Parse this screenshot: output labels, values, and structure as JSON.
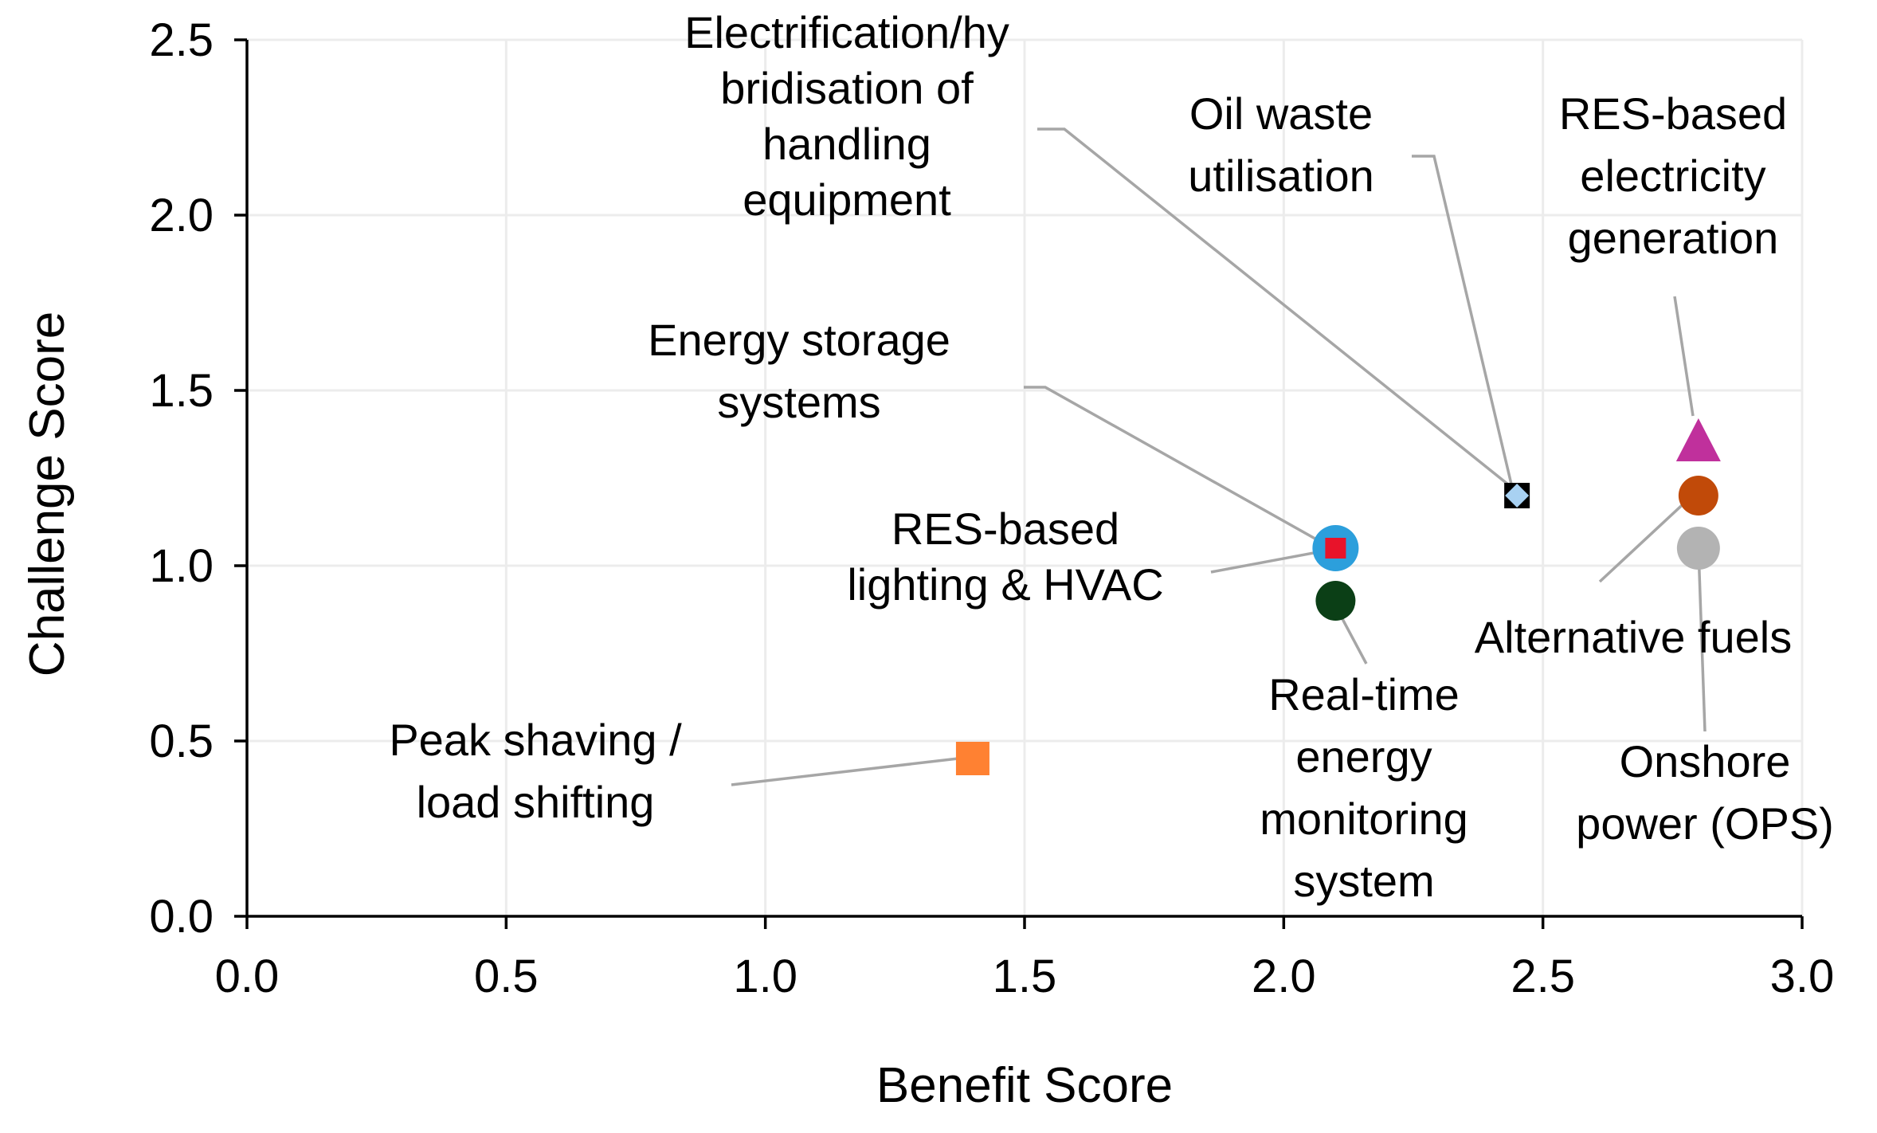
{
  "chart_data": {
    "type": "scatter",
    "title": "",
    "xlabel": "Benefit Score",
    "ylabel": "Challenge Score",
    "xlim": [
      0,
      3.0
    ],
    "ylim": [
      0,
      2.5
    ],
    "xticks": [
      "0.0",
      "0.5",
      "1.0",
      "1.5",
      "2.0",
      "2.5",
      "3.0"
    ],
    "yticks": [
      "0.0",
      "0.5",
      "1.0",
      "1.5",
      "2.0",
      "2.5"
    ],
    "grid": true,
    "legend": "none",
    "points": [
      {
        "id": "peak-shaving",
        "label": [
          "Peak shaving /",
          "load shifting"
        ],
        "x": 1.4,
        "y": 0.45,
        "marker": "square",
        "color": "#ff8132"
      },
      {
        "id": "energy-storage",
        "label": [
          "Energy storage",
          "systems"
        ],
        "x": 2.1,
        "y": 1.05,
        "marker": "circle",
        "color": "#2c9fdc"
      },
      {
        "id": "res-lighting-hvac",
        "label": [
          "RES-based",
          "lighting & HVAC"
        ],
        "x": 2.1,
        "y": 1.05,
        "marker": "square",
        "color": "#e8132a"
      },
      {
        "id": "real-time-monitoring",
        "label": [
          "Real-time",
          "energy",
          "monitoring",
          "system"
        ],
        "x": 2.1,
        "y": 0.9,
        "marker": "circle",
        "color": "#0b3f16"
      },
      {
        "id": "oil-waste",
        "label": [
          "Oil waste",
          "utilisation"
        ],
        "x": 2.45,
        "y": 1.2,
        "marker": "square",
        "color": "#000000"
      },
      {
        "id": "electrification",
        "label": [
          "Electrification/hy",
          "bridisation of",
          "handling",
          "equipment"
        ],
        "x": 2.45,
        "y": 1.2,
        "marker": "diamond",
        "color": "#a8d1f2"
      },
      {
        "id": "res-electricity",
        "label": [
          "RES-based",
          "electricity",
          "generation"
        ],
        "x": 2.8,
        "y": 1.35,
        "marker": "triangle",
        "color": "#c0309c"
      },
      {
        "id": "alternative-fuels",
        "label": [
          "Alternative fuels"
        ],
        "x": 2.8,
        "y": 1.2,
        "marker": "circle",
        "color": "#c14a09"
      },
      {
        "id": "onshore-power",
        "label": [
          "Onshore",
          "power (OPS)"
        ],
        "x": 2.8,
        "y": 1.05,
        "marker": "circle",
        "color": "#b3b3b3"
      }
    ]
  }
}
